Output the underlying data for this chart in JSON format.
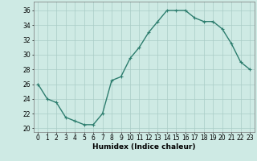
{
  "x": [
    0,
    1,
    2,
    3,
    4,
    5,
    6,
    7,
    8,
    9,
    10,
    11,
    12,
    13,
    14,
    15,
    16,
    17,
    18,
    19,
    20,
    21,
    22,
    23
  ],
  "y": [
    26,
    24,
    23.5,
    21.5,
    21,
    20.5,
    20.5,
    22,
    26.5,
    27,
    29.5,
    31,
    33,
    34.5,
    36,
    36,
    36,
    35,
    34.5,
    34.5,
    33.5,
    31.5,
    29,
    28
  ],
  "line_color": "#2d7d6e",
  "marker": "+",
  "marker_size": 3,
  "marker_lw": 0.8,
  "bg_color": "#ceeae4",
  "grid_color": "#aaccc6",
  "xlabel": "Humidex (Indice chaleur)",
  "ylabel_ticks": [
    20,
    22,
    24,
    26,
    28,
    30,
    32,
    34,
    36
  ],
  "xlim": [
    -0.5,
    23.5
  ],
  "ylim": [
    19.5,
    37.2
  ],
  "xticks": [
    0,
    1,
    2,
    3,
    4,
    5,
    6,
    7,
    8,
    9,
    10,
    11,
    12,
    13,
    14,
    15,
    16,
    17,
    18,
    19,
    20,
    21,
    22,
    23
  ],
  "linewidth": 1.0,
  "xlabel_fontsize": 6.5,
  "tick_fontsize": 5.5
}
